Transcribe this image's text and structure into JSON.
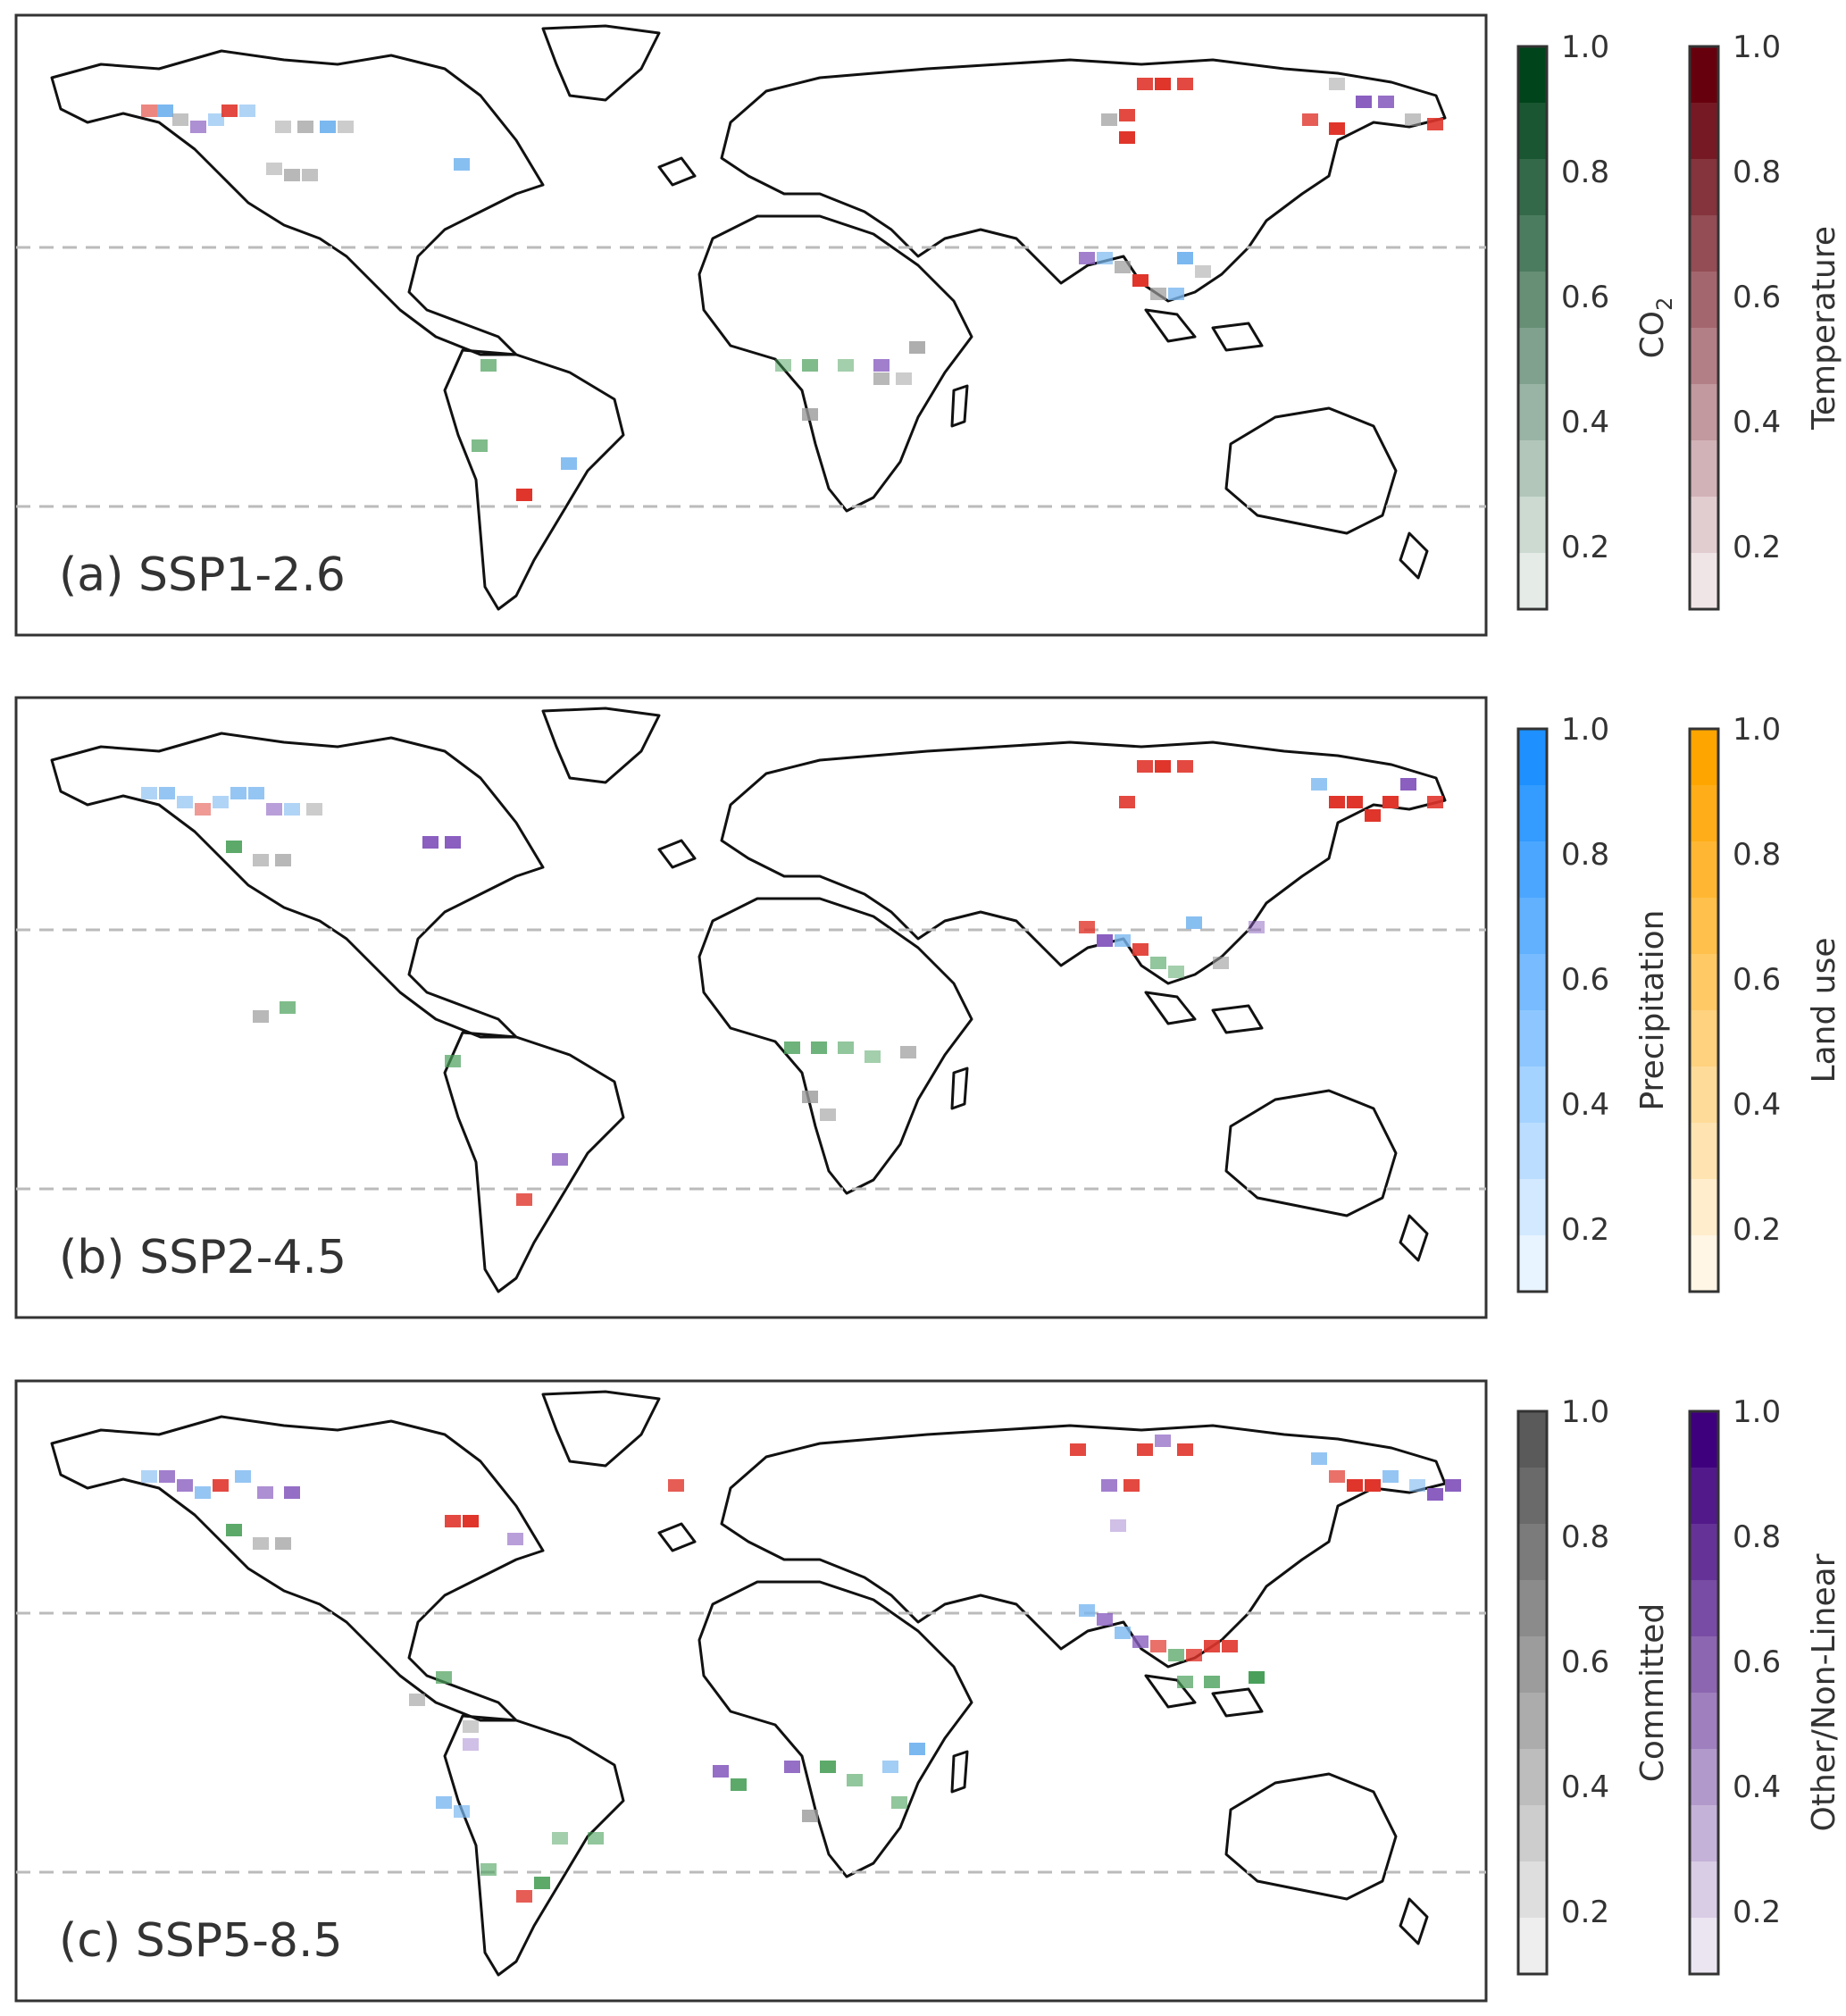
{
  "panels": [
    {
      "label": "(a) SSP1-2.6"
    },
    {
      "label": "(b) SSP2-4.5"
    },
    {
      "label": "(c) SSP5-8.5"
    }
  ],
  "colorbars": [
    {
      "title": "CO",
      "title_sub": "2",
      "color_min": "#f7fcf5",
      "color_max": "#00441b"
    },
    {
      "title": "Temperature",
      "color_min": "#fff5f0",
      "color_max": "#67000d"
    },
    {
      "title": "Precipitation",
      "color_min": "#e6f2ff",
      "color_max": "#1e90ff"
    },
    {
      "title": "Land use",
      "color_min": "#fff5e0",
      "color_max": "#ffa500"
    },
    {
      "title": "Committed",
      "color_min": "#ffffff",
      "color_max": "#5a5a5a"
    },
    {
      "title": "Other/Non-Linear",
      "color_min": "#fcfbfd",
      "color_max": "#3f007d"
    }
  ],
  "colorbar_ticks": [
    "1.0",
    "0.8",
    "0.6",
    "0.4",
    "0.2"
  ],
  "colors": {
    "co2": "#4aa05a",
    "temperature": "#e0352b",
    "precipitation": "#7bb8f0",
    "committed": "#9a9a9a",
    "other": "#8a5fc0",
    "dashed_lines": "#bbbbbb"
  }
}
